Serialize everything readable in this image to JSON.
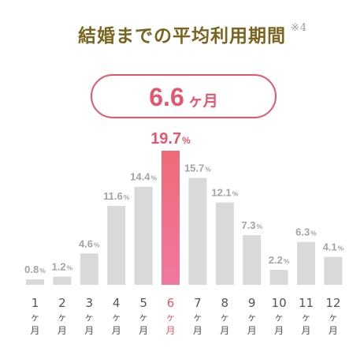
{
  "title": "結婚までの平均利用期間",
  "title_note": "※4",
  "highlight": {
    "value": "6.6",
    "unit": "ヶ月"
  },
  "colors": {
    "accent": "#e5566e",
    "bar": "#d9d9d9",
    "bar_highlight_top": "#ee6a78",
    "bar_highlight_bottom": "#f0789e",
    "label": "#a3a3a3",
    "axis": "#555555",
    "title": "#7a6420"
  },
  "chart_data": {
    "type": "bar",
    "categories": [
      "1ヶ月",
      "2ヶ月",
      "3ヶ月",
      "4ヶ月",
      "5ヶ月",
      "6ヶ月",
      "7ヶ月",
      "8ヶ月",
      "9ヶ月",
      "10ヶ月",
      "11ヶ月",
      "12ヶ月"
    ],
    "category_numbers": [
      "1",
      "2",
      "3",
      "4",
      "5",
      "6",
      "7",
      "8",
      "9",
      "10",
      "11",
      "12"
    ],
    "category_unit_lines": [
      "ヶ",
      "月"
    ],
    "values": [
      0.8,
      1.2,
      4.6,
      11.6,
      14.4,
      19.7,
      15.7,
      12.1,
      7.3,
      2.2,
      6.3,
      4.1
    ],
    "value_labels": [
      "0.8",
      "1.2",
      "4.6",
      "11.6",
      "14.4",
      "19.7",
      "15.7",
      "12.1",
      "7.3",
      "2.2",
      "6.3",
      "4.1"
    ],
    "value_suffix": "%",
    "highlight_index": 5,
    "ylim": [
      0,
      19.7
    ],
    "grid": false,
    "legend": "none"
  }
}
